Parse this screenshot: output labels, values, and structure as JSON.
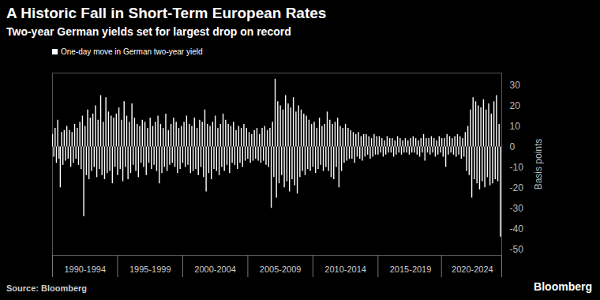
{
  "chart_data": {
    "type": "bar",
    "title": "A Historic Fall in Short-Term European Rates",
    "subtitle": "Two-year German yields set for largest drop on record",
    "source": "Source: Bloomberg",
    "logo": "Bloomberg",
    "y_label": "Basis points",
    "legend": "top-left",
    "grid": false,
    "xlim": [
      1990,
      2024.5
    ],
    "xticks": [
      {
        "value": 1992.5,
        "label": "1990-1994"
      },
      {
        "value": 1997.5,
        "label": "1995-1999"
      },
      {
        "value": 2002.5,
        "label": "2000-2004"
      },
      {
        "value": 2007.5,
        "label": "2005-2009"
      },
      {
        "value": 2012.5,
        "label": "2010-2014"
      },
      {
        "value": 2017.5,
        "label": "2015-2019"
      },
      {
        "value": 2022.25,
        "label": "2020-2024"
      }
    ],
    "ylim": [
      -53,
      36
    ],
    "yticks": [
      30,
      20,
      10,
      0,
      -10,
      -20,
      -30,
      -40,
      -50
    ],
    "x": [
      1990.0,
      1990.1,
      1990.2,
      1990.3,
      1990.4,
      1990.5,
      1990.6,
      1990.7,
      1990.8,
      1990.9,
      1991.0,
      1991.1,
      1991.2,
      1991.3,
      1991.4,
      1991.5,
      1991.6,
      1991.7,
      1991.8,
      1991.9,
      1992.0,
      1992.1,
      1992.2,
      1992.3,
      1992.4,
      1992.5,
      1992.6,
      1992.7,
      1992.8,
      1992.9,
      1993.0,
      1993.1,
      1993.2,
      1993.3,
      1993.4,
      1993.5,
      1993.6,
      1993.7,
      1993.8,
      1993.9,
      1994.0,
      1994.1,
      1994.2,
      1994.3,
      1994.4,
      1994.5,
      1994.6,
      1994.7,
      1994.8,
      1994.9,
      1995.0,
      1995.1,
      1995.2,
      1995.3,
      1995.4,
      1995.5,
      1995.6,
      1995.7,
      1995.8,
      1995.9,
      1996.0,
      1996.1,
      1996.2,
      1996.3,
      1996.4,
      1996.5,
      1996.6,
      1996.7,
      1996.8,
      1996.9,
      1997.0,
      1997.1,
      1997.2,
      1997.3,
      1997.4,
      1997.5,
      1997.6,
      1997.7,
      1997.8,
      1997.9,
      1998.0,
      1998.1,
      1998.2,
      1998.3,
      1998.4,
      1998.5,
      1998.6,
      1998.7,
      1998.8,
      1998.9,
      1999.0,
      1999.1,
      1999.2,
      1999.3,
      1999.4,
      1999.5,
      1999.6,
      1999.7,
      1999.8,
      1999.9,
      2000.0,
      2000.1,
      2000.2,
      2000.3,
      2000.4,
      2000.5,
      2000.6,
      2000.7,
      2000.8,
      2000.9,
      2001.0,
      2001.1,
      2001.2,
      2001.3,
      2001.4,
      2001.5,
      2001.6,
      2001.7,
      2001.8,
      2001.9,
      2002.0,
      2002.1,
      2002.2,
      2002.3,
      2002.4,
      2002.5,
      2002.6,
      2002.7,
      2002.8,
      2002.9,
      2003.0,
      2003.1,
      2003.2,
      2003.3,
      2003.4,
      2003.5,
      2003.6,
      2003.7,
      2003.8,
      2003.9,
      2004.0,
      2004.1,
      2004.2,
      2004.3,
      2004.4,
      2004.5,
      2004.6,
      2004.7,
      2004.8,
      2004.9,
      2005.0,
      2005.1,
      2005.2,
      2005.3,
      2005.4,
      2005.5,
      2005.6,
      2005.7,
      2005.8,
      2005.9,
      2006.0,
      2006.1,
      2006.2,
      2006.3,
      2006.4,
      2006.5,
      2006.6,
      2006.7,
      2006.8,
      2006.9,
      2007.0,
      2007.1,
      2007.2,
      2007.3,
      2007.4,
      2007.5,
      2007.6,
      2007.7,
      2007.8,
      2007.9,
      2008.0,
      2008.1,
      2008.2,
      2008.3,
      2008.4,
      2008.5,
      2008.6,
      2008.7,
      2008.8,
      2008.9,
      2009.0,
      2009.1,
      2009.2,
      2009.3,
      2009.4,
      2009.5,
      2009.6,
      2009.7,
      2009.8,
      2009.9,
      2010.0,
      2010.1,
      2010.2,
      2010.3,
      2010.4,
      2010.5,
      2010.6,
      2010.7,
      2010.8,
      2010.9,
      2011.0,
      2011.1,
      2011.2,
      2011.3,
      2011.4,
      2011.5,
      2011.6,
      2011.7,
      2011.8,
      2011.9,
      2012.0,
      2012.1,
      2012.2,
      2012.3,
      2012.4,
      2012.5,
      2012.6,
      2012.7,
      2012.8,
      2012.9,
      2013.0,
      2013.1,
      2013.2,
      2013.3,
      2013.4,
      2013.5,
      2013.6,
      2013.7,
      2013.8,
      2013.9,
      2014.0,
      2014.1,
      2014.2,
      2014.3,
      2014.4,
      2014.5,
      2014.6,
      2014.7,
      2014.8,
      2014.9,
      2015.0,
      2015.1,
      2015.2,
      2015.3,
      2015.4,
      2015.5,
      2015.6,
      2015.7,
      2015.8,
      2015.9,
      2016.0,
      2016.1,
      2016.2,
      2016.3,
      2016.4,
      2016.5,
      2016.6,
      2016.7,
      2016.8,
      2016.9,
      2017.0,
      2017.1,
      2017.2,
      2017.3,
      2017.4,
      2017.5,
      2017.6,
      2017.7,
      2017.8,
      2017.9,
      2018.0,
      2018.1,
      2018.2,
      2018.3,
      2018.4,
      2018.5,
      2018.6,
      2018.7,
      2018.8,
      2018.9,
      2019.0,
      2019.1,
      2019.2,
      2019.3,
      2019.4,
      2019.5,
      2019.6,
      2019.7,
      2019.8,
      2019.9,
      2020.0,
      2020.1,
      2020.2,
      2020.3,
      2020.4,
      2020.5,
      2020.6,
      2020.7,
      2020.8,
      2020.9,
      2021.0,
      2021.1,
      2021.2,
      2021.3,
      2021.4,
      2021.5,
      2021.6,
      2021.7,
      2021.8,
      2021.9,
      2022.0,
      2022.1,
      2022.2,
      2022.3,
      2022.4,
      2022.5,
      2022.6,
      2022.7,
      2022.8,
      2022.9,
      2023.0,
      2023.1,
      2023.2,
      2023.3,
      2023.4,
      2023.5,
      2023.6,
      2023.7,
      2023.8,
      2023.9,
      2024.0,
      2024.1,
      2024.2,
      2024.3,
      2024.4
    ],
    "series": [
      {
        "name": "One-day move in German two-year yield",
        "color": "#ffffff",
        "values": [
          6,
          -5,
          9,
          -8,
          13,
          -6,
          -20,
          7,
          -9,
          8,
          -7,
          10,
          -6,
          8,
          -10,
          7,
          -8,
          11,
          -6,
          9,
          -9,
          12,
          -11,
          15,
          -34,
          10,
          -14,
          18,
          -16,
          14,
          -12,
          16,
          -10,
          20,
          -15,
          13,
          -11,
          25,
          -14,
          12,
          -16,
          24,
          -13,
          17,
          -12,
          15,
          -18,
          14,
          -10,
          16,
          -14,
          19,
          -11,
          13,
          -17,
          22,
          -10,
          15,
          -16,
          12,
          -13,
          21,
          -9,
          14,
          -12,
          11,
          -15,
          10,
          -8,
          13,
          -10,
          12,
          -14,
          9,
          -8,
          14,
          -11,
          10,
          -9,
          12,
          -12,
          15,
          -18,
          11,
          -13,
          9,
          -10,
          16,
          -12,
          8,
          -9,
          11,
          -8,
          14,
          -10,
          12,
          -13,
          9,
          -11,
          10,
          -8,
          12,
          -10,
          15,
          -9,
          11,
          -13,
          10,
          -12,
          14,
          -11,
          9,
          -14,
          13,
          -10,
          12,
          -15,
          18,
          -22,
          11,
          -13,
          10,
          -16,
          12,
          -11,
          15,
          -12,
          9,
          -14,
          11,
          -10,
          16,
          -12,
          13,
          -9,
          11,
          -13,
          10,
          -8,
          12,
          -9,
          8,
          -11,
          10,
          -8,
          9,
          -10,
          11,
          -7,
          9,
          -6,
          7,
          -8,
          6,
          -7,
          8,
          -6,
          9,
          -7,
          6,
          -8,
          9,
          -7,
          10,
          -9,
          8,
          -10,
          9,
          -30,
          12,
          -15,
          33,
          -25,
          22,
          -18,
          20,
          -14,
          18,
          -20,
          25,
          -17,
          21,
          -22,
          19,
          -16,
          24,
          -19,
          17,
          -23,
          20,
          -15,
          18,
          -12,
          16,
          -14,
          15,
          -11,
          13,
          -12,
          11,
          -10,
          12,
          -13,
          9,
          -11,
          14,
          -9,
          10,
          -12,
          11,
          -10,
          17,
          -12,
          13,
          -15,
          11,
          -16,
          12,
          -10,
          14,
          -20,
          10,
          -12,
          9,
          -8,
          11,
          -7,
          9,
          -6,
          8,
          -6,
          7,
          -8,
          6,
          -5,
          7,
          -6,
          5,
          -7,
          6,
          -5,
          6,
          -4,
          5,
          -6,
          4,
          -5,
          6,
          -4,
          5,
          -4,
          5,
          -3,
          4,
          -5,
          3,
          -4,
          5,
          -3,
          4,
          -3,
          4,
          -5,
          3,
          -4,
          5,
          -3,
          4,
          -4,
          3,
          -3,
          4,
          -3,
          3,
          -4,
          4,
          -3,
          5,
          -3,
          4,
          -4,
          3,
          -5,
          4,
          -3,
          6,
          -7,
          4,
          -3,
          4,
          -4,
          5,
          -3,
          4,
          -5,
          3,
          -4,
          5,
          -3,
          4,
          -5,
          4,
          -10,
          6,
          -4,
          5,
          -3,
          4,
          -4,
          5,
          -5,
          6,
          -4,
          5,
          -6,
          4,
          -5,
          7,
          -12,
          10,
          -14,
          18,
          -25,
          24,
          -16,
          22,
          -18,
          20,
          -21,
          19,
          -17,
          23,
          -20,
          18,
          -15,
          21,
          -19,
          16,
          -18,
          22,
          -16,
          25,
          -17,
          11,
          -44
        ]
      }
    ]
  }
}
